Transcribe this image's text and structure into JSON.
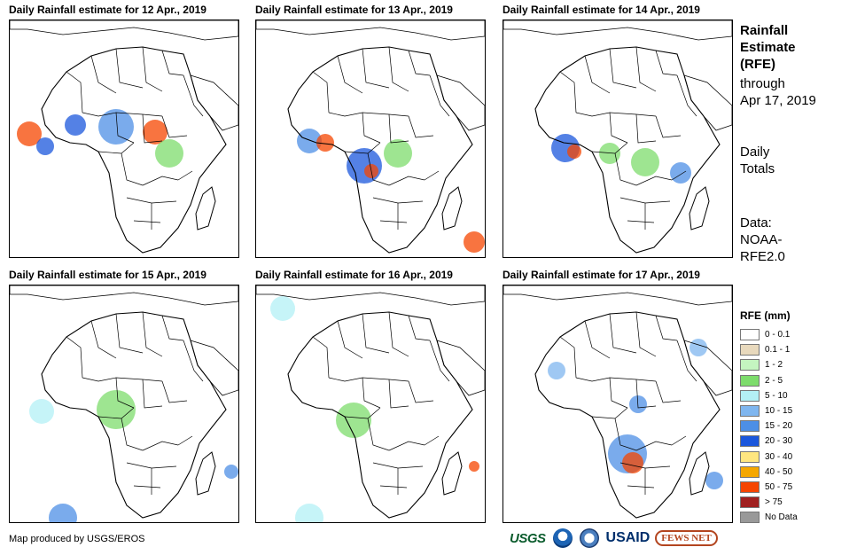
{
  "panels": [
    {
      "title": "Daily Rainfall estimate for 12 Apr., 2019",
      "rain_focus": "west-africa-central"
    },
    {
      "title": "Daily Rainfall estimate for 13 Apr., 2019",
      "rain_focus": "gulf-of-guinea-congo"
    },
    {
      "title": "Daily Rainfall estimate for 14 Apr., 2019",
      "rain_focus": "west-africa-east-africa"
    },
    {
      "title": "Daily Rainfall estimate for 15 Apr., 2019",
      "rain_focus": "scattered-light"
    },
    {
      "title": "Daily Rainfall estimate for 16 Apr., 2019",
      "rain_focus": "congo-light"
    },
    {
      "title": "Daily Rainfall estimate for 17 Apr., 2019",
      "rain_focus": "southern-africa-heavy"
    }
  ],
  "side": {
    "title": [
      "Rainfall",
      "Estimate",
      "(RFE)"
    ],
    "through": [
      "through",
      "Apr 17, 2019"
    ],
    "totals": [
      "Daily",
      "Totals"
    ],
    "data": [
      "Data:",
      "NOAA-",
      "RFE2.0"
    ]
  },
  "legend": {
    "title": "RFE (mm)",
    "items": [
      {
        "label": "0 - 0.1",
        "color": "#ffffff"
      },
      {
        "label": "0.1 - 1",
        "color": "#e8d9bd"
      },
      {
        "label": "1 - 2",
        "color": "#c4f5c0"
      },
      {
        "label": "2 - 5",
        "color": "#7ddc6c"
      },
      {
        "label": "5 - 10",
        "color": "#b3f0f5"
      },
      {
        "label": "10 - 15",
        "color": "#7fb6ef"
      },
      {
        "label": "15 - 20",
        "color": "#4d8fe6"
      },
      {
        "label": "20 - 30",
        "color": "#1b57dc"
      },
      {
        "label": "30 - 40",
        "color": "#ffe680"
      },
      {
        "label": "40 - 50",
        "color": "#f5a700"
      },
      {
        "label": "50 - 75",
        "color": "#f54500"
      },
      {
        "label": "> 75",
        "color": "#a02020"
      },
      {
        "label": "No Data",
        "color": "#999999"
      }
    ]
  },
  "credit": "Map produced by USGS/EROS",
  "logos": {
    "usgs": "USGS",
    "usaid": "USAID",
    "fews": "FEWS NET"
  }
}
